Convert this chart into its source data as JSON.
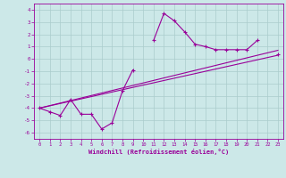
{
  "xlabel": "Windchill (Refroidissement éolien,°C)",
  "x_values": [
    0,
    1,
    2,
    3,
    4,
    5,
    6,
    7,
    8,
    9,
    10,
    11,
    12,
    13,
    14,
    15,
    16,
    17,
    18,
    19,
    20,
    21,
    22,
    23
  ],
  "line1_y": [
    -4.0,
    -4.3,
    -4.6,
    -3.3,
    -4.5,
    -4.5,
    -5.7,
    -5.2,
    -2.6,
    -0.9,
    null,
    1.5,
    3.7,
    3.1,
    2.2,
    1.2,
    1.0,
    0.75,
    0.75,
    0.75,
    0.75,
    1.5,
    null,
    0.4
  ],
  "line2_x": [
    0,
    23
  ],
  "line2_y": [
    -4.0,
    0.3
  ],
  "line3_x": [
    0,
    23
  ],
  "line3_y": [
    -4.0,
    0.7
  ],
  "color": "#990099",
  "bg_color": "#cce8e8",
  "grid_color": "#aacccc",
  "ylim": [
    -6.5,
    4.5
  ],
  "xlim": [
    -0.5,
    23.5
  ],
  "yticks": [
    -6,
    -5,
    -4,
    -3,
    -2,
    -1,
    0,
    1,
    2,
    3,
    4
  ]
}
